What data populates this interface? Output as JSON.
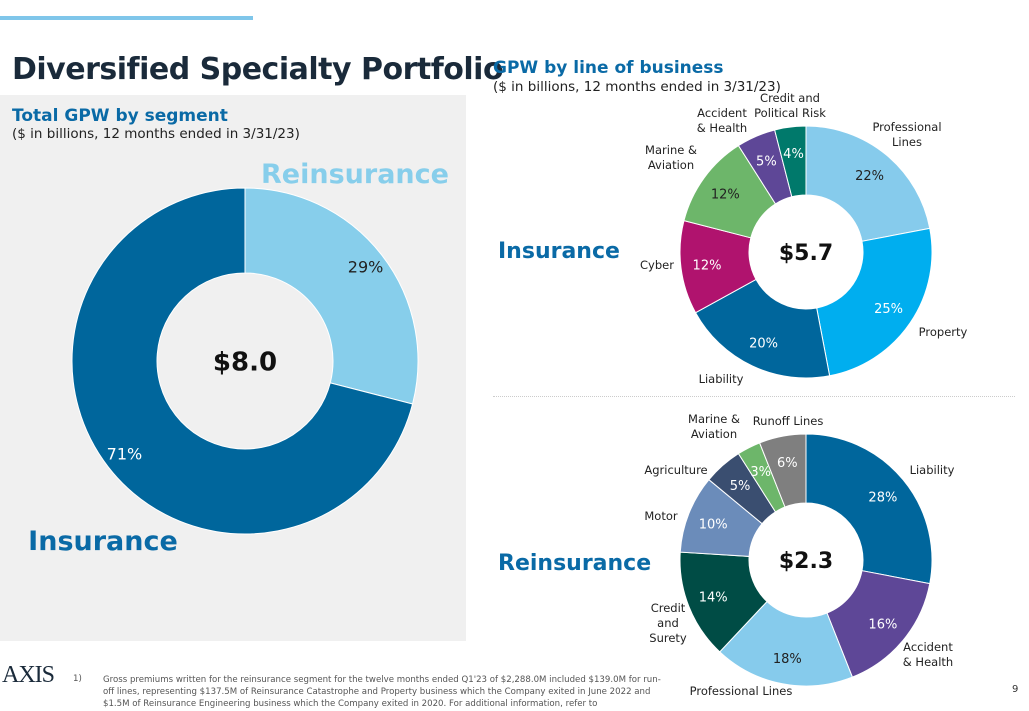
{
  "page": {
    "title": "Diversified Specialty Portfolio",
    "page_number": "9"
  },
  "left": {
    "heading": "Total GPW by segment",
    "subheading": "($ in billions, 12 months ended in 3/31/23)"
  },
  "right": {
    "heading": "GPW by line of business",
    "subheading": "($ in billions, 12 months ended in 3/31/23)",
    "insurance_label": "Insurance",
    "reinsurance_label": "Reinsurance"
  },
  "footnote": {
    "marker": "1)",
    "text": "Gross premiums written for the reinsurance segment for the twelve months ended  Q1'23 of $2,288.0M included $139.0M for run-off lines, representing $137.5M of Reinsurance Catastrophe and Property business which the Company exited in June 2022 and $1.5M of Reinsurance Engineering business which the Company exited in 2020. For additional information, refer to"
  },
  "logo": "AXIS",
  "chart_data": [
    {
      "type": "pie",
      "donut": true,
      "center_label": "$8.0",
      "categories": [
        "Reinsurance",
        "Insurance"
      ],
      "values": [
        29,
        71
      ],
      "labels": [
        "29%",
        "71%"
      ],
      "colors": [
        "#87ceeb",
        "#00669c"
      ]
    },
    {
      "type": "pie",
      "donut": true,
      "center_label": "$5.7",
      "categories": [
        "Professional Lines",
        "Property",
        "Liability",
        "Cyber",
        "Marine & Aviation",
        "Accident & Health",
        "Credit and Political Risk"
      ],
      "values": [
        22,
        25,
        20,
        12,
        12,
        5,
        4
      ],
      "labels": [
        "22%",
        "25%",
        "20%",
        "12%",
        "12%",
        "5%",
        "4%"
      ],
      "colors": [
        "#86cbec",
        "#00aeef",
        "#00669c",
        "#b0136e",
        "#6db66a",
        "#5e4797",
        "#00796b"
      ]
    },
    {
      "type": "pie",
      "donut": true,
      "center_label": "$2.3",
      "categories": [
        "Liability",
        "Accident & Health",
        "Professional Lines",
        "Credit and Surety",
        "Motor",
        "Agriculture",
        "Marine & Aviation",
        "Runoff Lines"
      ],
      "values": [
        28,
        16,
        18,
        14,
        10,
        5,
        3,
        6
      ],
      "labels": [
        "28%",
        "16%",
        "18%",
        "14%",
        "10%",
        "5%",
        "3%",
        "6%"
      ],
      "colors": [
        "#00669c",
        "#5e4797",
        "#86cbec",
        "#004c45",
        "#6b8cba",
        "#3a4e70",
        "#6db66a",
        "#7f7f7f"
      ]
    }
  ]
}
